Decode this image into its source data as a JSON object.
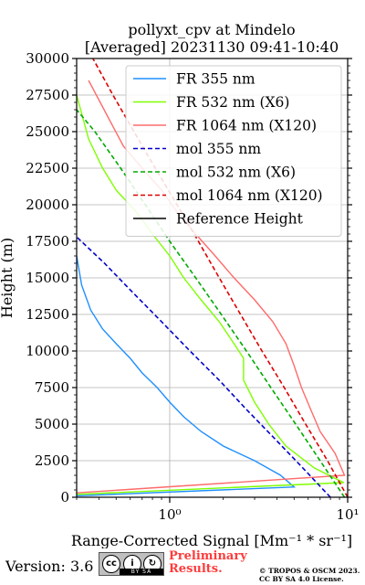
{
  "chart_data": {
    "type": "line",
    "title": "pollyxt_cpv at Mindelo",
    "subtitle": "[Averaged] 20231130 09:41-10:40",
    "xlabel": "Range-Corrected Signal [Mm⁻¹ * sr⁻¹]",
    "ylabel": "Height (m)",
    "x_scale": "log",
    "xlim": [
      0.3,
      10
    ],
    "ylim": [
      0,
      30000
    ],
    "x_tick_labels": [
      "10⁰",
      "10¹"
    ],
    "y_ticks": [
      0,
      2500,
      5000,
      7500,
      10000,
      12500,
      15000,
      17500,
      20000,
      22500,
      25000,
      27500,
      30000
    ],
    "grid": true,
    "legend_position": "top-right",
    "series": [
      {
        "name": "FR 355 nm",
        "style": "solid",
        "color": "#1f8fff",
        "x": [
          0.3,
          5.0,
          4.2,
          3.0,
          2.0,
          1.5,
          1.2,
          1.0,
          0.85,
          0.7,
          0.6,
          0.5,
          0.42,
          0.36,
          0.32,
          0.3
        ],
        "y": [
          100,
          700,
          1500,
          2500,
          3500,
          4500,
          5500,
          6500,
          7500,
          8500,
          9500,
          10500,
          11500,
          12800,
          14500,
          16500
        ]
      },
      {
        "name": "FR 532 nm (X6)",
        "style": "solid",
        "color": "#7fff00",
        "x": [
          0.3,
          9.5,
          6.5,
          4.5,
          3.6,
          3.0,
          2.6,
          2.6,
          2.3,
          1.9,
          1.5,
          1.2,
          1.0,
          0.8,
          0.65,
          0.5,
          0.42,
          0.35,
          0.3
        ],
        "y": [
          200,
          1000,
          2000,
          3500,
          5000,
          6500,
          8000,
          9500,
          10500,
          12000,
          13500,
          15000,
          16500,
          18000,
          19500,
          21000,
          22500,
          24500,
          27500
        ]
      },
      {
        "name": "FR 1064 nm (X120)",
        "style": "solid",
        "color": "#ff6b6b",
        "x": [
          0.3,
          9.6,
          8.5,
          7.0,
          6.2,
          5.5,
          5.0,
          4.5,
          3.8,
          3.0,
          2.3,
          1.8,
          1.4,
          1.1,
          0.9,
          0.7,
          0.55,
          0.45,
          0.35
        ],
        "y": [
          300,
          1500,
          3000,
          4500,
          6000,
          7500,
          9000,
          10500,
          12000,
          13500,
          15000,
          16500,
          18000,
          19500,
          21000,
          22500,
          24000,
          26000,
          28500
        ]
      },
      {
        "name": "mol 355 nm",
        "style": "dashed",
        "color": "#0000cc",
        "x": [
          8.0,
          5.6,
          3.9,
          2.7,
          1.9,
          1.3,
          0.9,
          0.62,
          0.43,
          0.3
        ],
        "y": [
          0,
          2000,
          4000,
          6000,
          8000,
          10000,
          12000,
          14000,
          16000,
          17800
        ]
      },
      {
        "name": "mol 532 nm (X6)",
        "style": "dashed",
        "color": "#00aa00",
        "x": [
          9.6,
          7.0,
          5.1,
          3.7,
          2.7,
          1.95,
          1.4,
          1.0,
          0.73,
          0.53,
          0.38,
          0.3
        ],
        "y": [
          0,
          2500,
          5000,
          7500,
          10000,
          12500,
          15000,
          17500,
          20000,
          22500,
          25000,
          26500
        ]
      },
      {
        "name": "mol 1064 nm (X120)",
        "style": "dashed",
        "color": "#dd0000",
        "x": [
          10.0,
          7.7,
          5.8,
          4.4,
          3.3,
          2.5,
          1.9,
          1.45,
          1.1,
          0.83,
          0.63,
          0.48,
          0.37,
          0.3
        ],
        "y": [
          0,
          2500,
          5000,
          7500,
          10000,
          12500,
          15000,
          17500,
          20000,
          22500,
          25000,
          27500,
          30000,
          31500
        ]
      },
      {
        "name": "Reference Height",
        "style": "solid",
        "color": "#000000",
        "x": [],
        "y": []
      }
    ]
  },
  "footer": {
    "version": "Version: 3.6",
    "preliminary": [
      "Preliminary",
      "Results."
    ],
    "copyright": [
      "© TROPOS & OSCM 2023.",
      "CC BY SA 4.0 License."
    ],
    "badge_strip": "BY  SA",
    "badge_icons": [
      "cc",
      "i",
      "↻"
    ]
  }
}
